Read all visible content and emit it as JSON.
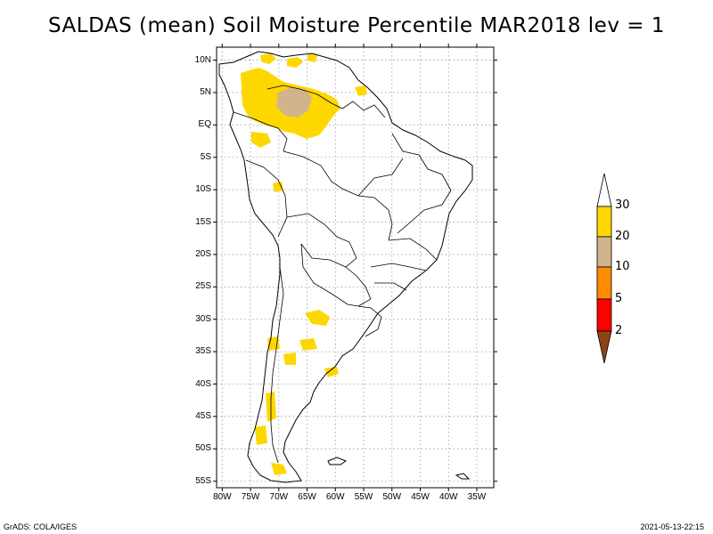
{
  "title": "SALDAS (mean) Soil Moisture Percentile MAR2018 lev = 1",
  "map": {
    "region": "South America",
    "lat_range": [
      -56,
      12
    ],
    "lon_range": [
      -81,
      -32
    ],
    "lat_labels": [
      "10N",
      "5N",
      "EQ",
      "5S",
      "10S",
      "15S",
      "20S",
      "25S",
      "30S",
      "35S",
      "40S",
      "45S",
      "50S",
      "55S"
    ],
    "lat_values": [
      10,
      5,
      0,
      -5,
      -10,
      -15,
      -20,
      -25,
      -30,
      -35,
      -40,
      -45,
      -50,
      -55
    ],
    "lon_labels": [
      "80W",
      "75W",
      "70W",
      "65W",
      "60W",
      "55W",
      "50W",
      "45W",
      "40W",
      "35W"
    ],
    "lon_values": [
      -80,
      -75,
      -70,
      -65,
      -60,
      -55,
      -50,
      -45,
      -40,
      -35
    ]
  },
  "colorbar": {
    "labels": [
      "30",
      "20",
      "10",
      "5",
      "2"
    ],
    "colors": {
      "above_30": "#ffffff",
      "20_30": "#ffd700",
      "10_20": "#d2b48c",
      "5_10": "#ff8c00",
      "2_5": "#ff0000",
      "below_2": "#8b4513"
    }
  },
  "footer": {
    "left": "GrADS: COLA/IGES",
    "right": "2021-05-13-22:15"
  }
}
